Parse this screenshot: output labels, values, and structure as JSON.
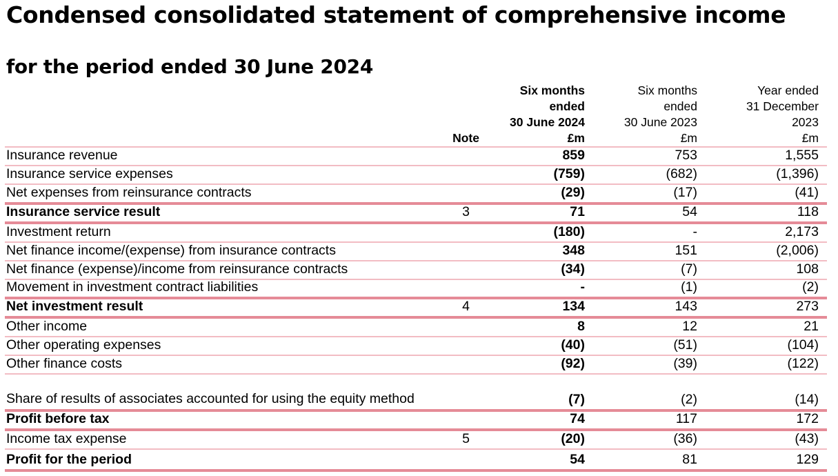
{
  "title": "Condensed consolidated statement of comprehensive income",
  "subtitle": "for the period ended 30 June 2024",
  "headers": {
    "note": "Note",
    "col1": [
      "Six months",
      "ended",
      "30 June 2024",
      "£m"
    ],
    "col2": [
      "Six months",
      "ended",
      "30 June 2023",
      "£m"
    ],
    "col3": [
      "Year ended",
      "31 December",
      "2023",
      "£m"
    ]
  },
  "rows": [
    {
      "label": "Insurance revenue",
      "note": "",
      "c1": "859",
      "c2": "753",
      "c3": "1,555",
      "bold": false
    },
    {
      "label": "Insurance service expenses",
      "note": "",
      "c1": "(759)",
      "c2": "(682)",
      "c3": "(1,396)",
      "bold": false
    },
    {
      "label": "Net expenses from reinsurance contracts",
      "note": "",
      "c1": "(29)",
      "c2": "(17)",
      "c3": "(41)",
      "bold": false
    },
    {
      "label": "Insurance service result",
      "note": "3",
      "c1": "71",
      "c2": "54",
      "c3": "118",
      "bold": true
    },
    {
      "label": "Investment return",
      "note": "",
      "c1": "(180)",
      "c2": "-",
      "c3": "2,173",
      "bold": false
    },
    {
      "label": "Net finance income/(expense) from insurance contracts",
      "note": "",
      "c1": "348",
      "c2": "151",
      "c3": "(2,006)",
      "bold": false
    },
    {
      "label": "Net finance (expense)/income from reinsurance contracts",
      "note": "",
      "c1": "(34)",
      "c2": "(7)",
      "c3": "108",
      "bold": false
    },
    {
      "label": "Movement in investment contract liabilities",
      "note": "",
      "c1": "-",
      "c2": "(1)",
      "c3": "(2)",
      "bold": false
    },
    {
      "label": "Net investment result",
      "note": "4",
      "c1": "134",
      "c2": "143",
      "c3": "273",
      "bold": true
    },
    {
      "label": "Other income",
      "note": "",
      "c1": "8",
      "c2": "12",
      "c3": "21",
      "bold": false
    },
    {
      "label": "Other operating expenses",
      "note": "",
      "c1": "(40)",
      "c2": "(51)",
      "c3": "(104)",
      "bold": false
    },
    {
      "label": "Other finance costs",
      "note": "",
      "c1": "(92)",
      "c2": "(39)",
      "c3": "(122)",
      "bold": false
    },
    {
      "label": "Share of results of associates accounted for using the equity method",
      "note": "",
      "c1": "(7)",
      "c2": "(2)",
      "c3": "(14)",
      "bold": false
    },
    {
      "label": "Profit before tax",
      "note": "",
      "c1": "74",
      "c2": "117",
      "c3": "172",
      "bold": true
    },
    {
      "label": "Income tax expense",
      "note": "5",
      "c1": "(20)",
      "c2": "(36)",
      "c3": "(43)",
      "bold": false
    },
    {
      "label": "Profit for the period",
      "note": "",
      "c1": "54",
      "c2": "81",
      "c3": "129",
      "bold": true
    }
  ]
}
